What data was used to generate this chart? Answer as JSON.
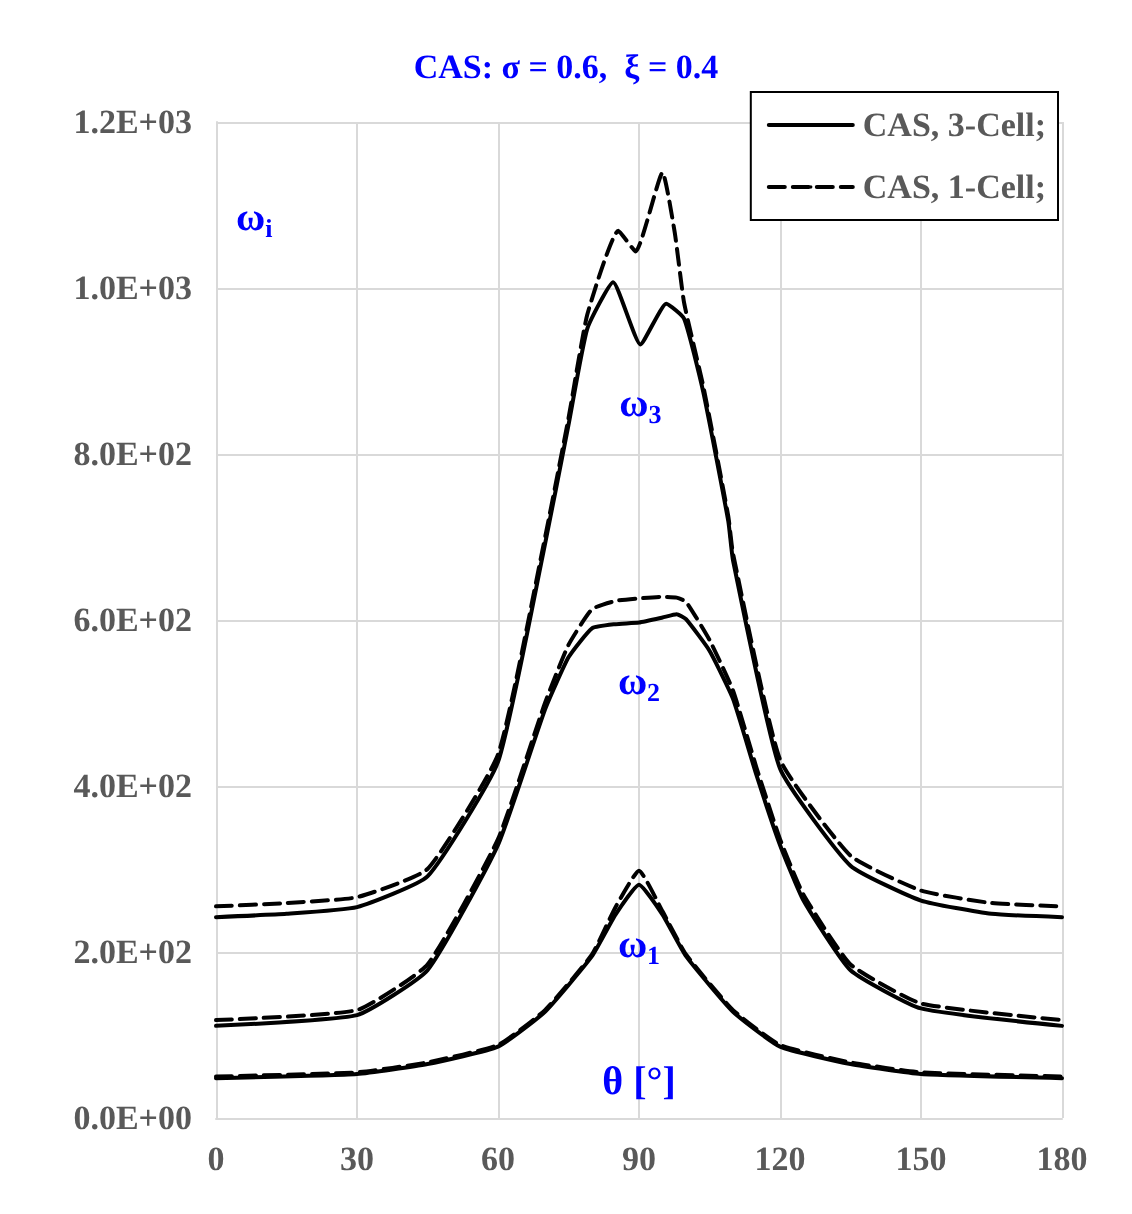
{
  "chart_data": {
    "type": "line",
    "title": "CAS: σ = 0.6,  ξ = 0.4",
    "xlabel": "θ [°]",
    "ylabel": "ω$_{i}$",
    "xlim": [
      0,
      180
    ],
    "xticks": [
      0,
      30,
      60,
      90,
      120,
      150,
      180
    ],
    "ylim": [
      0,
      1200
    ],
    "yticks": [
      {
        "value": 0,
        "label": "0.0E+00"
      },
      {
        "value": 200,
        "label": "2.0E+02"
      },
      {
        "value": 400,
        "label": "4.0E+02"
      },
      {
        "value": 600,
        "label": "6.0E+02"
      },
      {
        "value": 800,
        "label": "8.0E+02"
      },
      {
        "value": 1000,
        "label": "1.0E+03"
      },
      {
        "value": 1200,
        "label": "1.2E+03"
      }
    ],
    "grid": true,
    "legend": "top right",
    "marker": "none",
    "annotations": [
      "ω$_{3}$",
      "ω$_{2}$",
      "ω$_{1}$"
    ],
    "series": [
      {
        "name": "CAS, 3-Cell;",
        "color": "#000000",
        "line_style": "solid",
        "x": [
          0,
          15,
          30,
          45,
          60,
          69.6,
          75,
          79,
          84.5,
          90.3,
          95.8,
          99.6,
          103.7,
          109,
          110,
          120,
          135,
          150,
          165,
          180
        ],
        "values": [
          242,
          246,
          254,
          291,
          429,
          680,
          835,
          951,
          1007,
          932,
          981,
          963,
          874,
          719,
          672,
          421,
          304,
          262,
          246,
          242
        ]
      },
      {
        "name": "CAS, 1-Cell;",
        "color": "#000000",
        "line_style": "dashed",
        "x": [
          0,
          15,
          30,
          45,
          60,
          69.6,
          75,
          79,
          85.6,
          89.3,
          95,
          97.6,
          99.6,
          103.7,
          109,
          110,
          120,
          135,
          150,
          165,
          180
        ],
        "values": [
          255,
          259,
          266,
          300,
          438,
          688,
          843,
          968,
          1069,
          1044,
          1139,
          1067,
          982,
          881,
          725,
          680,
          432,
          316,
          274,
          259,
          255
        ]
      },
      {
        "color": "#000000",
        "line_style": "solid",
        "x": [
          0,
          30,
          45,
          60,
          70,
          75,
          80,
          85,
          90,
          95,
          98,
          100,
          105,
          110,
          115,
          120,
          125,
          135,
          150,
          180
        ],
        "values": [
          111,
          124,
          178,
          329,
          492,
          555,
          590,
          595,
          597,
          603,
          607,
          601,
          563,
          505,
          413,
          329,
          262,
          178,
          132,
          111
        ]
      },
      {
        "color": "#000000",
        "line_style": "dashed",
        "x": [
          0,
          30,
          45,
          60,
          70,
          75,
          80,
          85,
          90,
          95,
          98,
          100,
          105,
          110,
          115,
          120,
          125,
          135,
          150,
          180
        ],
        "values": [
          118,
          130,
          185,
          336,
          500,
          570,
          613,
          623,
          626,
          628,
          627,
          622,
          576,
          515,
          422,
          336,
          269,
          185,
          138,
          118
        ]
      },
      {
        "color": "#000000",
        "line_style": "solid",
        "x": [
          0,
          30,
          45,
          60,
          70,
          80,
          85,
          90,
          95,
          100,
          110,
          120,
          135,
          150,
          180
        ],
        "values": [
          48,
          53,
          65,
          86,
          128,
          195,
          245,
          281,
          245,
          195,
          128,
          86,
          65,
          53,
          48
        ]
      },
      {
        "color": "#000000",
        "line_style": "dashed",
        "x": [
          0,
          30,
          45,
          60,
          70,
          80,
          85,
          90,
          95,
          100,
          110,
          120,
          135,
          150,
          180
        ],
        "values": [
          50,
          55,
          67,
          88,
          130,
          197,
          254,
          298,
          249,
          197,
          130,
          88,
          67,
          55,
          50
        ]
      }
    ]
  }
}
